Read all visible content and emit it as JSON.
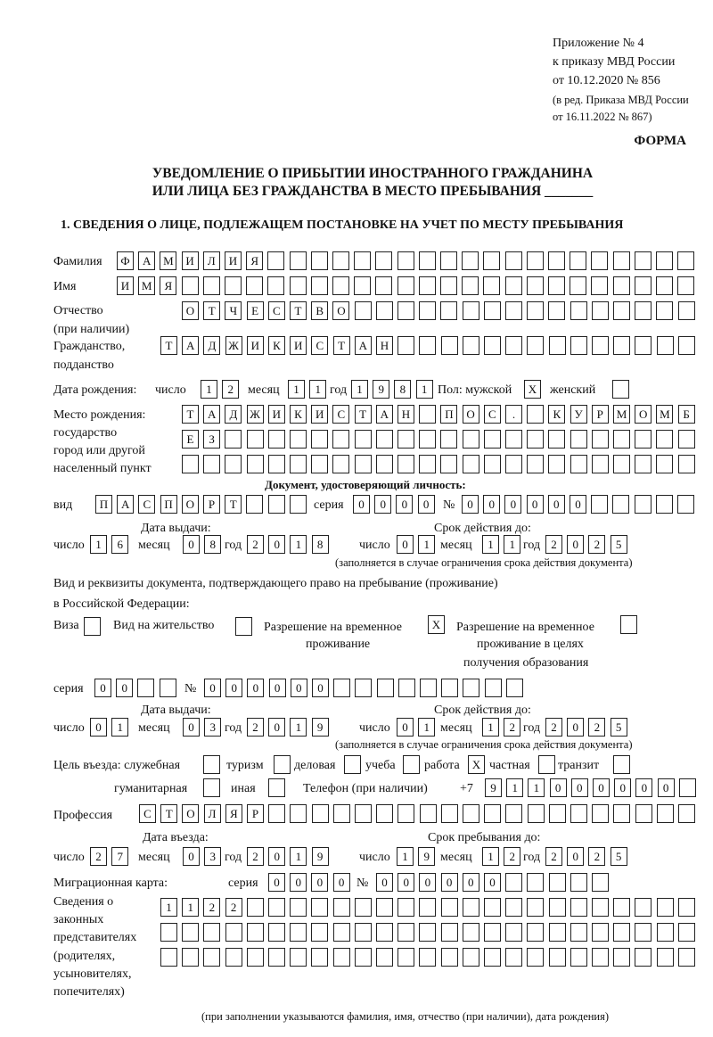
{
  "header": {
    "appendix": "Приложение № 4",
    "order": "к приказу МВД России",
    "order_date": "от 10.12.2020 № 856",
    "edition1": "(в ред. Приказа МВД России",
    "edition2": "от 16.11.2022 № 867)",
    "form": "ФОРМА",
    "title1": "УВЕДОМЛЕНИЕ О ПРИБЫТИИ ИНОСТРАННОГО ГРАЖДАНИНА",
    "title2": "ИЛИ ЛИЦА БЕЗ ГРАЖДАНСТВА В МЕСТО ПРЕБЫВАНИЯ _______",
    "section1": "1. СВЕДЕНИЯ О ЛИЦЕ, ПОДЛЕЖАЩЕМ ПОСТАНОВКЕ НА УЧЕТ ПО МЕСТУ ПРЕБЫВАНИЯ"
  },
  "labels": {
    "surname": "Фамилия",
    "name": "Имя",
    "patronymic1": "Отчество",
    "patronymic2": "(при наличии)",
    "citizenship1": "Гражданство,",
    "citizenship2": "подданство",
    "birth_date": "Дата рождения:",
    "day": "число",
    "month": "месяц",
    "year": "год",
    "sex": "Пол: мужской",
    "female": "женский",
    "birthplace1": "Место рождения:",
    "birthplace2": "государство",
    "birthplace3": "город или другой",
    "birthplace4": "населенный пункт",
    "id_doc": "Документ, удостоверяющий личность:",
    "kind": "вид",
    "series": "серия",
    "number": "№",
    "issue_date": "Дата выдачи:",
    "valid_until": "Срок действия до:",
    "validity_note": "(заполняется в случае ограничения срока действия документа)",
    "right_doc1": "Вид и реквизиты документа, подтверждающего право на пребывание (проживание)",
    "right_doc2": "в Российской Федерации:",
    "visa": "Виза",
    "residence": "Вид на жительство",
    "temp1": "Разрешение на временное",
    "temp2": "проживание",
    "edu1": "Разрешение на временное",
    "edu2": "проживание в целях",
    "edu3": "получения образования",
    "purpose": "Цель въезда: служебная",
    "tourism": "туризм",
    "business": "деловая",
    "study": "учеба",
    "work": "работа",
    "private": "частная",
    "transit": "транзит",
    "humanitarian": "гуманитарная",
    "other": "иная",
    "phone": "Телефон (при наличии)",
    "phone_prefix": "+7",
    "profession": "Профессия",
    "entry_date": "Дата въезда:",
    "stay_until": "Срок пребывания до:",
    "migration_card": "Миграционная карта:",
    "reps1": "Сведения о",
    "reps2": "законных",
    "reps3": "представителях",
    "reps4": "(родителях,",
    "reps5": "усыновителях,",
    "reps6": "попечителях)",
    "reps_note": "(при заполнении указываются фамилия, имя, отчество (при наличии), дата рождения)"
  },
  "fields": {
    "surname": "ФАМИЛИЯ",
    "name": "ИМЯ",
    "patronymic": "ОТЧЕСТВО",
    "citizenship": "ТАДЖИКИСТАН",
    "birth_day": "12",
    "birth_month": "11",
    "birth_year": "1981",
    "sex_male": "X",
    "sex_female": "",
    "birthplace1": "ТАДЖИКИСТАН ПОС. КУРМОМБ",
    "birthplace2": "ЕЗ",
    "birthplace3": "",
    "doc_kind": "ПАСПОРТ",
    "doc_series": "0000",
    "doc_number": "000000",
    "doc_issue_day": "16",
    "doc_issue_month": "08",
    "doc_issue_year": "2018",
    "doc_valid_day": "01",
    "doc_valid_month": "11",
    "doc_valid_year": "2025",
    "visa": "",
    "residence": "",
    "temp_residence": "X",
    "edu_residence": "",
    "right_series": "00",
    "right_number": "000000",
    "right_issue_day": "01",
    "right_issue_month": "03",
    "right_issue_year": "2019",
    "right_valid_day": "01",
    "right_valid_month": "12",
    "right_valid_year": "2025",
    "p_service": "",
    "p_tourism": "",
    "p_business": "",
    "p_study": "",
    "p_work": "X",
    "p_private": "",
    "p_transit": "",
    "p_humanitarian": "",
    "p_other": "",
    "phone": "911000000",
    "profession": "СТОЛЯР",
    "entry_day": "27",
    "entry_month": "03",
    "entry_year": "2019",
    "stay_day": "19",
    "stay_month": "12",
    "stay_year": "2025",
    "mc_series": "0000",
    "mc_number": "000000",
    "reps1": "1122",
    "reps2": "",
    "reps3": ""
  }
}
